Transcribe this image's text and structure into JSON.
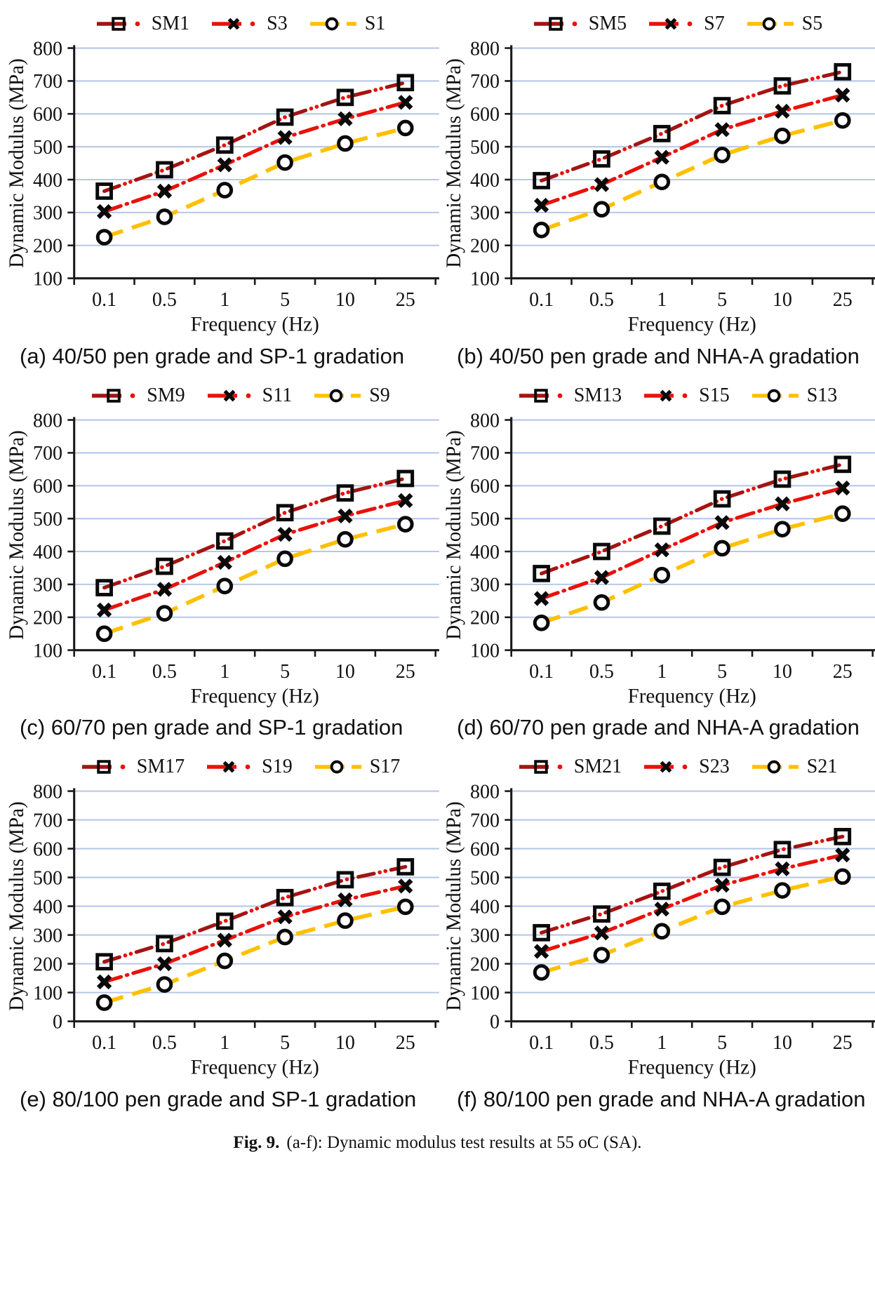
{
  "figure_caption": {
    "label": "Fig. 9.",
    "text": "(a-f): Dynamic modulus test results at 55 oC (SA)."
  },
  "colors": {
    "sm_line": "#A41411",
    "s_line": "#E8120B",
    "s1_line": "#FFC000",
    "grid": "#B7C7E7",
    "axis": "#1a1a1a",
    "marker": "#0a0a0a",
    "text": "#111111"
  },
  "chart_data": [
    {
      "type": "line",
      "panel": "a",
      "title": "(a) 40/50 pen grade and SP-1 gradation",
      "xlabel": "Frequency (Hz)",
      "ylabel": "Dynamic Modulus (MPa)",
      "categories": [
        "0.1",
        "0.5",
        "1",
        "5",
        "10",
        "25"
      ],
      "ylim": [
        100,
        800
      ],
      "ytick_step": 100,
      "grid": true,
      "legend_position": "top",
      "series": [
        {
          "name": "SM1",
          "marker": "square",
          "line_style": "long-dash-dot-dot",
          "color": "sm_line",
          "values": [
            365,
            430,
            505,
            590,
            650,
            695
          ]
        },
        {
          "name": "S3",
          "marker": "x",
          "line_style": "dash-dot",
          "color": "s_line",
          "values": [
            303,
            365,
            445,
            528,
            585,
            635
          ]
        },
        {
          "name": "S1",
          "marker": "circle",
          "line_style": "long-dash",
          "color": "s1_line",
          "values": [
            225,
            287,
            368,
            452,
            510,
            557
          ]
        }
      ]
    },
    {
      "type": "line",
      "panel": "b",
      "title": "(b) 40/50 pen grade and NHA-A gradation",
      "xlabel": "Frequency (Hz)",
      "ylabel": "Dynamic Modulus (MPa)",
      "categories": [
        "0.1",
        "0.5",
        "1",
        "5",
        "10",
        "25"
      ],
      "ylim": [
        100,
        800
      ],
      "ytick_step": 100,
      "grid": true,
      "legend_position": "top",
      "series": [
        {
          "name": "SM5",
          "marker": "square",
          "line_style": "long-dash-dot-dot",
          "color": "sm_line",
          "values": [
            397,
            463,
            540,
            625,
            685,
            728
          ]
        },
        {
          "name": "S7",
          "marker": "x",
          "line_style": "dash-dot",
          "color": "s_line",
          "values": [
            322,
            385,
            468,
            552,
            608,
            657
          ]
        },
        {
          "name": "S5",
          "marker": "circle",
          "line_style": "long-dash",
          "color": "s1_line",
          "values": [
            247,
            310,
            393,
            475,
            533,
            580
          ]
        }
      ]
    },
    {
      "type": "line",
      "panel": "c",
      "title": "(c) 60/70 pen grade and SP-1 gradation",
      "xlabel": "Frequency (Hz)",
      "ylabel": "Dynamic Modulus (MPa)",
      "categories": [
        "0.1",
        "0.5",
        "1",
        "5",
        "10",
        "25"
      ],
      "ylim": [
        100,
        800
      ],
      "ytick_step": 100,
      "grid": true,
      "legend_position": "top",
      "series": [
        {
          "name": "SM9",
          "marker": "square",
          "line_style": "long-dash-dot-dot",
          "color": "sm_line",
          "values": [
            290,
            355,
            432,
            518,
            578,
            622
          ]
        },
        {
          "name": "S11",
          "marker": "x",
          "line_style": "dash-dot",
          "color": "s_line",
          "values": [
            222,
            285,
            367,
            452,
            508,
            555
          ]
        },
        {
          "name": "S9",
          "marker": "circle",
          "line_style": "long-dash",
          "color": "s1_line",
          "values": [
            150,
            212,
            295,
            378,
            437,
            483
          ]
        }
      ]
    },
    {
      "type": "line",
      "panel": "d",
      "title": "(d) 60/70 pen grade and NHA-A gradation",
      "xlabel": "Frequency (Hz)",
      "ylabel": "Dynamic Modulus (MPa)",
      "categories": [
        "0.1",
        "0.5",
        "1",
        "5",
        "10",
        "25"
      ],
      "ylim": [
        100,
        800
      ],
      "ytick_step": 100,
      "grid": true,
      "legend_position": "top",
      "series": [
        {
          "name": "SM13",
          "marker": "square",
          "line_style": "long-dash-dot-dot",
          "color": "sm_line",
          "values": [
            333,
            400,
            477,
            560,
            620,
            665
          ]
        },
        {
          "name": "S15",
          "marker": "x",
          "line_style": "dash-dot",
          "color": "s_line",
          "values": [
            257,
            321,
            405,
            488,
            545,
            593
          ]
        },
        {
          "name": "S13",
          "marker": "circle",
          "line_style": "long-dash",
          "color": "s1_line",
          "values": [
            183,
            245,
            328,
            410,
            468,
            515
          ]
        }
      ]
    },
    {
      "type": "line",
      "panel": "e",
      "title": "(e) 80/100 pen grade and SP-1 gradation",
      "xlabel": "Frequency (Hz)",
      "ylabel": "Dynamic Modulus (MPa)",
      "categories": [
        "0.1",
        "0.5",
        "1",
        "5",
        "10",
        "25"
      ],
      "ylim": [
        0,
        800
      ],
      "ytick_step": 100,
      "grid": true,
      "legend_position": "top",
      "series": [
        {
          "name": "SM17",
          "marker": "square",
          "line_style": "long-dash-dot-dot",
          "color": "sm_line",
          "values": [
            207,
            270,
            348,
            430,
            492,
            537
          ]
        },
        {
          "name": "S19",
          "marker": "x",
          "line_style": "dash-dot",
          "color": "s_line",
          "values": [
            137,
            200,
            282,
            363,
            422,
            470
          ]
        },
        {
          "name": "S17",
          "marker": "circle",
          "line_style": "long-dash",
          "color": "s1_line",
          "values": [
            65,
            128,
            210,
            293,
            350,
            398
          ]
        }
      ]
    },
    {
      "type": "line",
      "panel": "f",
      "title": "(f) 80/100 pen grade and NHA-A gradation",
      "xlabel": "Frequency (Hz)",
      "ylabel": "Dynamic Modulus (MPa)",
      "categories": [
        "0.1",
        "0.5",
        "1",
        "5",
        "10",
        "25"
      ],
      "ylim": [
        0,
        800
      ],
      "ytick_step": 100,
      "grid": true,
      "legend_position": "top",
      "series": [
        {
          "name": "SM21",
          "marker": "square",
          "line_style": "long-dash-dot-dot",
          "color": "sm_line",
          "values": [
            308,
            373,
            452,
            535,
            597,
            642
          ]
        },
        {
          "name": "S23",
          "marker": "x",
          "line_style": "dash-dot",
          "color": "s_line",
          "values": [
            243,
            307,
            390,
            473,
            530,
            578
          ]
        },
        {
          "name": "S21",
          "marker": "circle",
          "line_style": "long-dash",
          "color": "s1_line",
          "values": [
            170,
            230,
            313,
            398,
            455,
            503
          ]
        }
      ]
    }
  ]
}
